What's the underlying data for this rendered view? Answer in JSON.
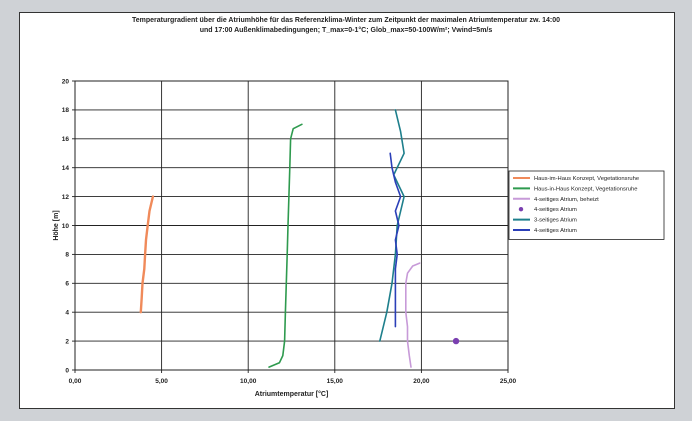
{
  "chart_data": {
    "type": "line",
    "title_line1": "Temperaturgradient über die Atriumhöhe für das Referenzklima-Winter zum Zeitpunkt der maximalen Atriumtemperatur zw. 14:00",
    "title_line2": "und 17:00 Außenklimabedingungen; T_max=0-1°C; Glob_max=50-100W/m²; Vwind=5m/s",
    "xlabel": "Atriumtemperatur [°C]",
    "ylabel": "Höhe [m]",
    "xlim": [
      0,
      25
    ],
    "ylim": [
      0,
      20
    ],
    "x_ticks": [
      "0,00",
      "5,00",
      "10,00",
      "15,00",
      "20,00",
      "25,00"
    ],
    "y_ticks": [
      "0",
      "2",
      "4",
      "6",
      "8",
      "10",
      "12",
      "14",
      "16",
      "18",
      "20"
    ],
    "grid": true,
    "legend_position": "right",
    "series": [
      {
        "name": "Haus-im-Haus Konzept, Vegetationsruhe",
        "color": "#f08a5a",
        "kind": "line",
        "points": [
          [
            3.8,
            4.0
          ],
          [
            3.85,
            5.0
          ],
          [
            3.9,
            6.0
          ],
          [
            4.0,
            7.0
          ],
          [
            4.05,
            8.0
          ],
          [
            4.1,
            9.0
          ],
          [
            4.2,
            10.0
          ],
          [
            4.3,
            11.0
          ],
          [
            4.5,
            12.0
          ]
        ]
      },
      {
        "name": "Haus-in-Haus Konzept, Vegetationsruhe",
        "color": "#2e9a4e",
        "kind": "line",
        "points": [
          [
            11.2,
            0.2
          ],
          [
            11.8,
            0.5
          ],
          [
            12.0,
            1.0
          ],
          [
            12.1,
            2.0
          ],
          [
            12.15,
            4.0
          ],
          [
            12.2,
            6.0
          ],
          [
            12.25,
            8.0
          ],
          [
            12.3,
            10.0
          ],
          [
            12.35,
            12.0
          ],
          [
            12.4,
            14.0
          ],
          [
            12.45,
            16.0
          ],
          [
            12.6,
            16.7
          ],
          [
            13.1,
            17.0
          ]
        ]
      },
      {
        "name": "4-seitiges Atrium, beheizt",
        "color": "#c79ad8",
        "kind": "line",
        "points": [
          [
            19.4,
            0.2
          ],
          [
            19.3,
            1.0
          ],
          [
            19.2,
            2.0
          ],
          [
            19.2,
            3.0
          ],
          [
            19.1,
            4.0
          ],
          [
            19.1,
            5.0
          ],
          [
            19.1,
            6.0
          ],
          [
            19.2,
            6.7
          ],
          [
            19.5,
            7.2
          ],
          [
            19.9,
            7.4
          ]
        ]
      },
      {
        "name": "4-seitiges Atrium",
        "color": "#7a3fb0",
        "kind": "point",
        "points": [
          [
            22.0,
            2.0
          ]
        ]
      },
      {
        "name": "3-seitiges Atrium",
        "color": "#1e7f8c",
        "kind": "line",
        "points": [
          [
            17.6,
            2.0
          ],
          [
            18.0,
            4.0
          ],
          [
            18.3,
            6.0
          ],
          [
            18.5,
            8.0
          ],
          [
            18.6,
            10.0
          ],
          [
            19.0,
            12.0
          ],
          [
            18.4,
            13.5
          ],
          [
            19.0,
            15.0
          ],
          [
            18.8,
            16.5
          ],
          [
            18.5,
            18.0
          ]
        ]
      },
      {
        "name": "4-seitiges Atrium",
        "color": "#2b3fb8",
        "kind": "line",
        "points": [
          [
            18.5,
            3.0
          ],
          [
            18.5,
            5.0
          ],
          [
            18.5,
            7.0
          ],
          [
            18.6,
            8.0
          ],
          [
            18.5,
            9.0
          ],
          [
            18.7,
            10.0
          ],
          [
            18.5,
            11.0
          ],
          [
            18.8,
            12.0
          ],
          [
            18.5,
            13.0
          ],
          [
            18.3,
            14.0
          ],
          [
            18.2,
            15.0
          ]
        ]
      }
    ]
  }
}
